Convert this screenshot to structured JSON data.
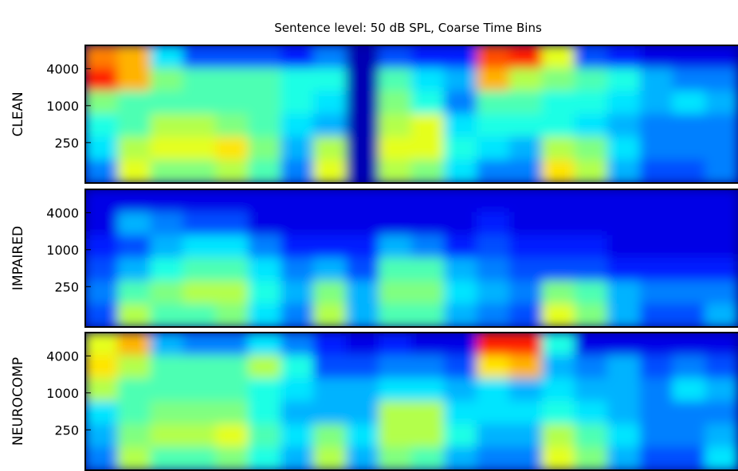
{
  "chart_data": [
    {
      "type": "heatmap",
      "title": "Sentence level: 50 dB SPL,  Coarse Time Bins",
      "ylabel": "CLEAN",
      "ylim": [
        55,
        9600
      ],
      "log_y": true,
      "yticks": [
        250,
        1000,
        4000
      ],
      "colormap": "jet",
      "clim": [
        0,
        1
      ],
      "z": [
        [
          0.75,
          0.7,
          0.35,
          0.2,
          0.2,
          0.2,
          0.15,
          0.25,
          0.05,
          0.2,
          0.15,
          0.15,
          0.8,
          0.85,
          0.6,
          0.2,
          0.15,
          0.1,
          0.1,
          0.1
        ],
        [
          0.85,
          0.7,
          0.5,
          0.45,
          0.45,
          0.45,
          0.4,
          0.4,
          0.05,
          0.45,
          0.35,
          0.3,
          0.7,
          0.55,
          0.5,
          0.45,
          0.4,
          0.3,
          0.25,
          0.25
        ],
        [
          0.5,
          0.45,
          0.45,
          0.45,
          0.45,
          0.45,
          0.4,
          0.35,
          0.05,
          0.5,
          0.4,
          0.25,
          0.45,
          0.45,
          0.4,
          0.4,
          0.35,
          0.3,
          0.35,
          0.3
        ],
        [
          0.4,
          0.45,
          0.55,
          0.55,
          0.5,
          0.45,
          0.35,
          0.3,
          0.05,
          0.55,
          0.6,
          0.35,
          0.4,
          0.4,
          0.4,
          0.35,
          0.3,
          0.25,
          0.25,
          0.25
        ],
        [
          0.35,
          0.55,
          0.6,
          0.6,
          0.65,
          0.5,
          0.3,
          0.55,
          0.05,
          0.6,
          0.6,
          0.4,
          0.35,
          0.3,
          0.55,
          0.5,
          0.35,
          0.25,
          0.25,
          0.25
        ],
        [
          0.25,
          0.6,
          0.5,
          0.5,
          0.55,
          0.45,
          0.25,
          0.6,
          0.05,
          0.55,
          0.5,
          0.35,
          0.25,
          0.25,
          0.65,
          0.55,
          0.3,
          0.2,
          0.2,
          0.25
        ]
      ]
    },
    {
      "type": "heatmap",
      "ylabel": "IMPAIRED",
      "ylim": [
        55,
        9600
      ],
      "log_y": true,
      "yticks": [
        250,
        1000,
        4000
      ],
      "colormap": "jet",
      "clim": [
        0,
        1
      ],
      "z": [
        [
          0.1,
          0.1,
          0.1,
          0.1,
          0.1,
          0.1,
          0.1,
          0.1,
          0.1,
          0.1,
          0.1,
          0.1,
          0.1,
          0.1,
          0.1,
          0.1,
          0.1,
          0.1,
          0.1,
          0.1
        ],
        [
          0.1,
          0.3,
          0.25,
          0.2,
          0.2,
          0.1,
          0.1,
          0.1,
          0.1,
          0.1,
          0.1,
          0.1,
          0.15,
          0.1,
          0.1,
          0.1,
          0.1,
          0.1,
          0.1,
          0.1
        ],
        [
          0.15,
          0.2,
          0.3,
          0.35,
          0.35,
          0.25,
          0.15,
          0.15,
          0.15,
          0.3,
          0.25,
          0.15,
          0.2,
          0.15,
          0.15,
          0.15,
          0.1,
          0.1,
          0.1,
          0.1
        ],
        [
          0.2,
          0.3,
          0.4,
          0.45,
          0.45,
          0.35,
          0.25,
          0.3,
          0.2,
          0.45,
          0.45,
          0.3,
          0.25,
          0.2,
          0.2,
          0.2,
          0.15,
          0.15,
          0.15,
          0.15
        ],
        [
          0.25,
          0.45,
          0.5,
          0.55,
          0.55,
          0.4,
          0.3,
          0.5,
          0.3,
          0.5,
          0.5,
          0.35,
          0.3,
          0.25,
          0.5,
          0.45,
          0.3,
          0.25,
          0.25,
          0.25
        ],
        [
          0.2,
          0.55,
          0.45,
          0.45,
          0.5,
          0.35,
          0.25,
          0.55,
          0.3,
          0.45,
          0.45,
          0.3,
          0.25,
          0.2,
          0.6,
          0.5,
          0.3,
          0.2,
          0.2,
          0.3
        ]
      ]
    },
    {
      "type": "heatmap",
      "ylabel": "NEUROCOMP",
      "ylim": [
        55,
        9600
      ],
      "log_y": true,
      "yticks": [
        250,
        1000,
        4000
      ],
      "colormap": "jet",
      "clim": [
        0,
        1
      ],
      "z": [
        [
          0.6,
          0.7,
          0.3,
          0.25,
          0.25,
          0.35,
          0.25,
          0.15,
          0.1,
          0.15,
          0.1,
          0.1,
          0.85,
          0.85,
          0.4,
          0.1,
          0.1,
          0.1,
          0.1,
          0.1
        ],
        [
          0.65,
          0.55,
          0.45,
          0.45,
          0.45,
          0.55,
          0.4,
          0.2,
          0.2,
          0.25,
          0.25,
          0.2,
          0.65,
          0.7,
          0.3,
          0.25,
          0.3,
          0.2,
          0.25,
          0.2
        ],
        [
          0.55,
          0.45,
          0.45,
          0.45,
          0.45,
          0.4,
          0.35,
          0.3,
          0.3,
          0.35,
          0.35,
          0.3,
          0.35,
          0.3,
          0.35,
          0.3,
          0.3,
          0.25,
          0.35,
          0.3
        ],
        [
          0.35,
          0.45,
          0.5,
          0.5,
          0.5,
          0.4,
          0.3,
          0.3,
          0.3,
          0.55,
          0.55,
          0.35,
          0.35,
          0.35,
          0.4,
          0.35,
          0.3,
          0.25,
          0.25,
          0.25
        ],
        [
          0.3,
          0.5,
          0.55,
          0.55,
          0.6,
          0.45,
          0.35,
          0.5,
          0.35,
          0.55,
          0.55,
          0.4,
          0.3,
          0.3,
          0.55,
          0.45,
          0.35,
          0.25,
          0.25,
          0.3
        ],
        [
          0.25,
          0.55,
          0.45,
          0.45,
          0.5,
          0.4,
          0.3,
          0.55,
          0.3,
          0.5,
          0.45,
          0.3,
          0.25,
          0.25,
          0.6,
          0.5,
          0.3,
          0.2,
          0.2,
          0.35
        ]
      ]
    }
  ]
}
